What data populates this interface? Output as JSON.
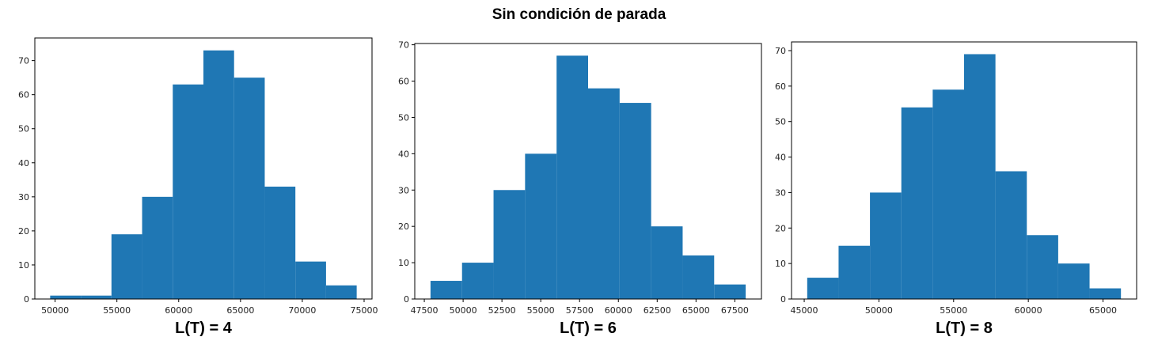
{
  "title": "Sin condición de parada",
  "chart_data": [
    {
      "type": "bar",
      "caption": "L(T) = 4",
      "color": "#1f77b4",
      "bin_edges": [
        49600,
        52080,
        54560,
        57040,
        59520,
        62000,
        64480,
        66960,
        69440,
        71920,
        74400
      ],
      "values": [
        1,
        1,
        19,
        30,
        63,
        73,
        65,
        33,
        11,
        4
      ],
      "xlim": [
        48360,
        75640
      ],
      "ylim": [
        0,
        76.65
      ],
      "xticks": [
        50000,
        55000,
        60000,
        65000,
        70000,
        75000
      ],
      "yticks": [
        0,
        10,
        20,
        30,
        40,
        50,
        60,
        70
      ]
    },
    {
      "type": "bar",
      "caption": "L(T) = 6",
      "color": "#1f77b4",
      "bin_edges": [
        47900,
        49930,
        51960,
        53990,
        56020,
        58050,
        60080,
        62110,
        64140,
        66170,
        68200
      ],
      "values": [
        5,
        10,
        30,
        40,
        67,
        58,
        54,
        20,
        12,
        4
      ],
      "xlim": [
        46885,
        69215
      ],
      "ylim": [
        0,
        70.35
      ],
      "xticks": [
        47500,
        50000,
        52500,
        55000,
        57500,
        60000,
        62500,
        65000,
        67500
      ],
      "yticks": [
        0,
        10,
        20,
        30,
        40,
        50,
        60,
        70
      ]
    },
    {
      "type": "bar",
      "caption": "L(T) = 8",
      "color": "#1f77b4",
      "bin_edges": [
        45200,
        47300,
        49400,
        51500,
        53600,
        55700,
        57800,
        59900,
        62000,
        64100,
        66200
      ],
      "values": [
        6,
        15,
        30,
        54,
        59,
        69,
        36,
        18,
        10,
        3
      ],
      "xlim": [
        44150,
        67250
      ],
      "ylim": [
        0,
        72.45
      ],
      "xticks": [
        45000,
        50000,
        55000,
        60000,
        65000
      ],
      "yticks": [
        0,
        10,
        20,
        30,
        40,
        50,
        60,
        70
      ]
    }
  ]
}
